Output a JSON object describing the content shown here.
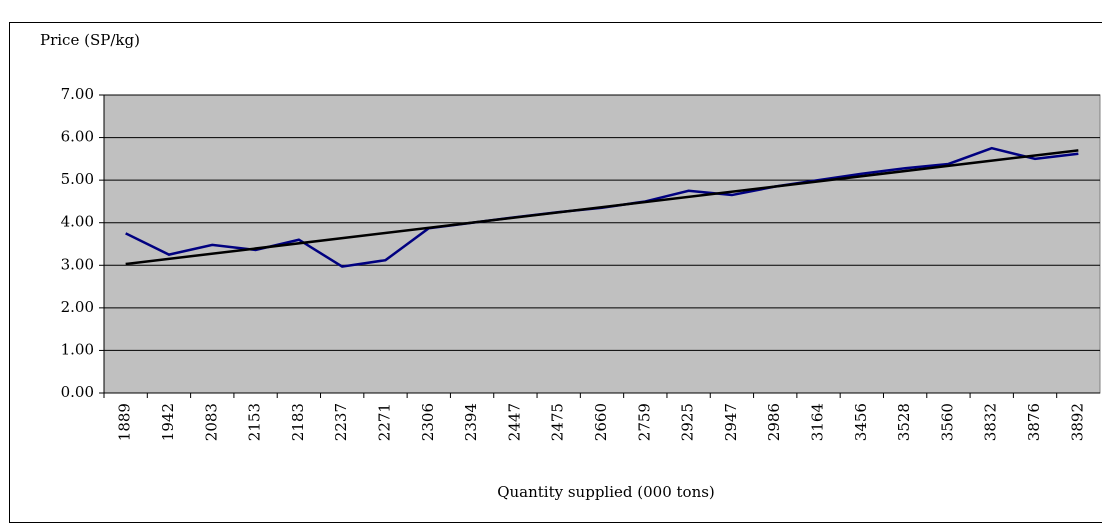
{
  "chart_data": {
    "type": "line",
    "y_axis_title": "Price (SP/kg)",
    "x_axis_title": "Quantity supplied (000 tons)",
    "categories": [
      "1889",
      "1942",
      "2083",
      "2153",
      "2183",
      "2237",
      "2271",
      "2306",
      "2394",
      "2447",
      "2475",
      "2660",
      "2759",
      "2925",
      "2947",
      "2986",
      "3164",
      "3456",
      "3528",
      "3560",
      "3832",
      "3876",
      "3892"
    ],
    "series": [
      {
        "color": "#000080",
        "values": [
          3.75,
          3.25,
          3.48,
          3.36,
          3.6,
          2.97,
          3.12,
          3.87,
          4.0,
          4.13,
          4.25,
          4.35,
          4.5,
          4.75,
          4.65,
          4.85,
          5.0,
          5.15,
          5.28,
          5.38,
          5.75,
          5.5,
          5.62
        ]
      }
    ],
    "trendline": {
      "color": "#000000",
      "values": [
        3.03,
        5.7
      ]
    },
    "ylim": [
      0,
      7
    ],
    "yticks": [
      {
        "value": 0,
        "label": "0.00"
      },
      {
        "value": 1,
        "label": "1.00"
      },
      {
        "value": 2,
        "label": "2.00"
      },
      {
        "value": 3,
        "label": "3.00"
      },
      {
        "value": 4,
        "label": "4.00"
      },
      {
        "value": 5,
        "label": "5.00"
      },
      {
        "value": 6,
        "label": "6.00"
      },
      {
        "value": 7,
        "label": "7.00"
      }
    ],
    "grid": true,
    "plot_background": "#c0c0c0"
  }
}
